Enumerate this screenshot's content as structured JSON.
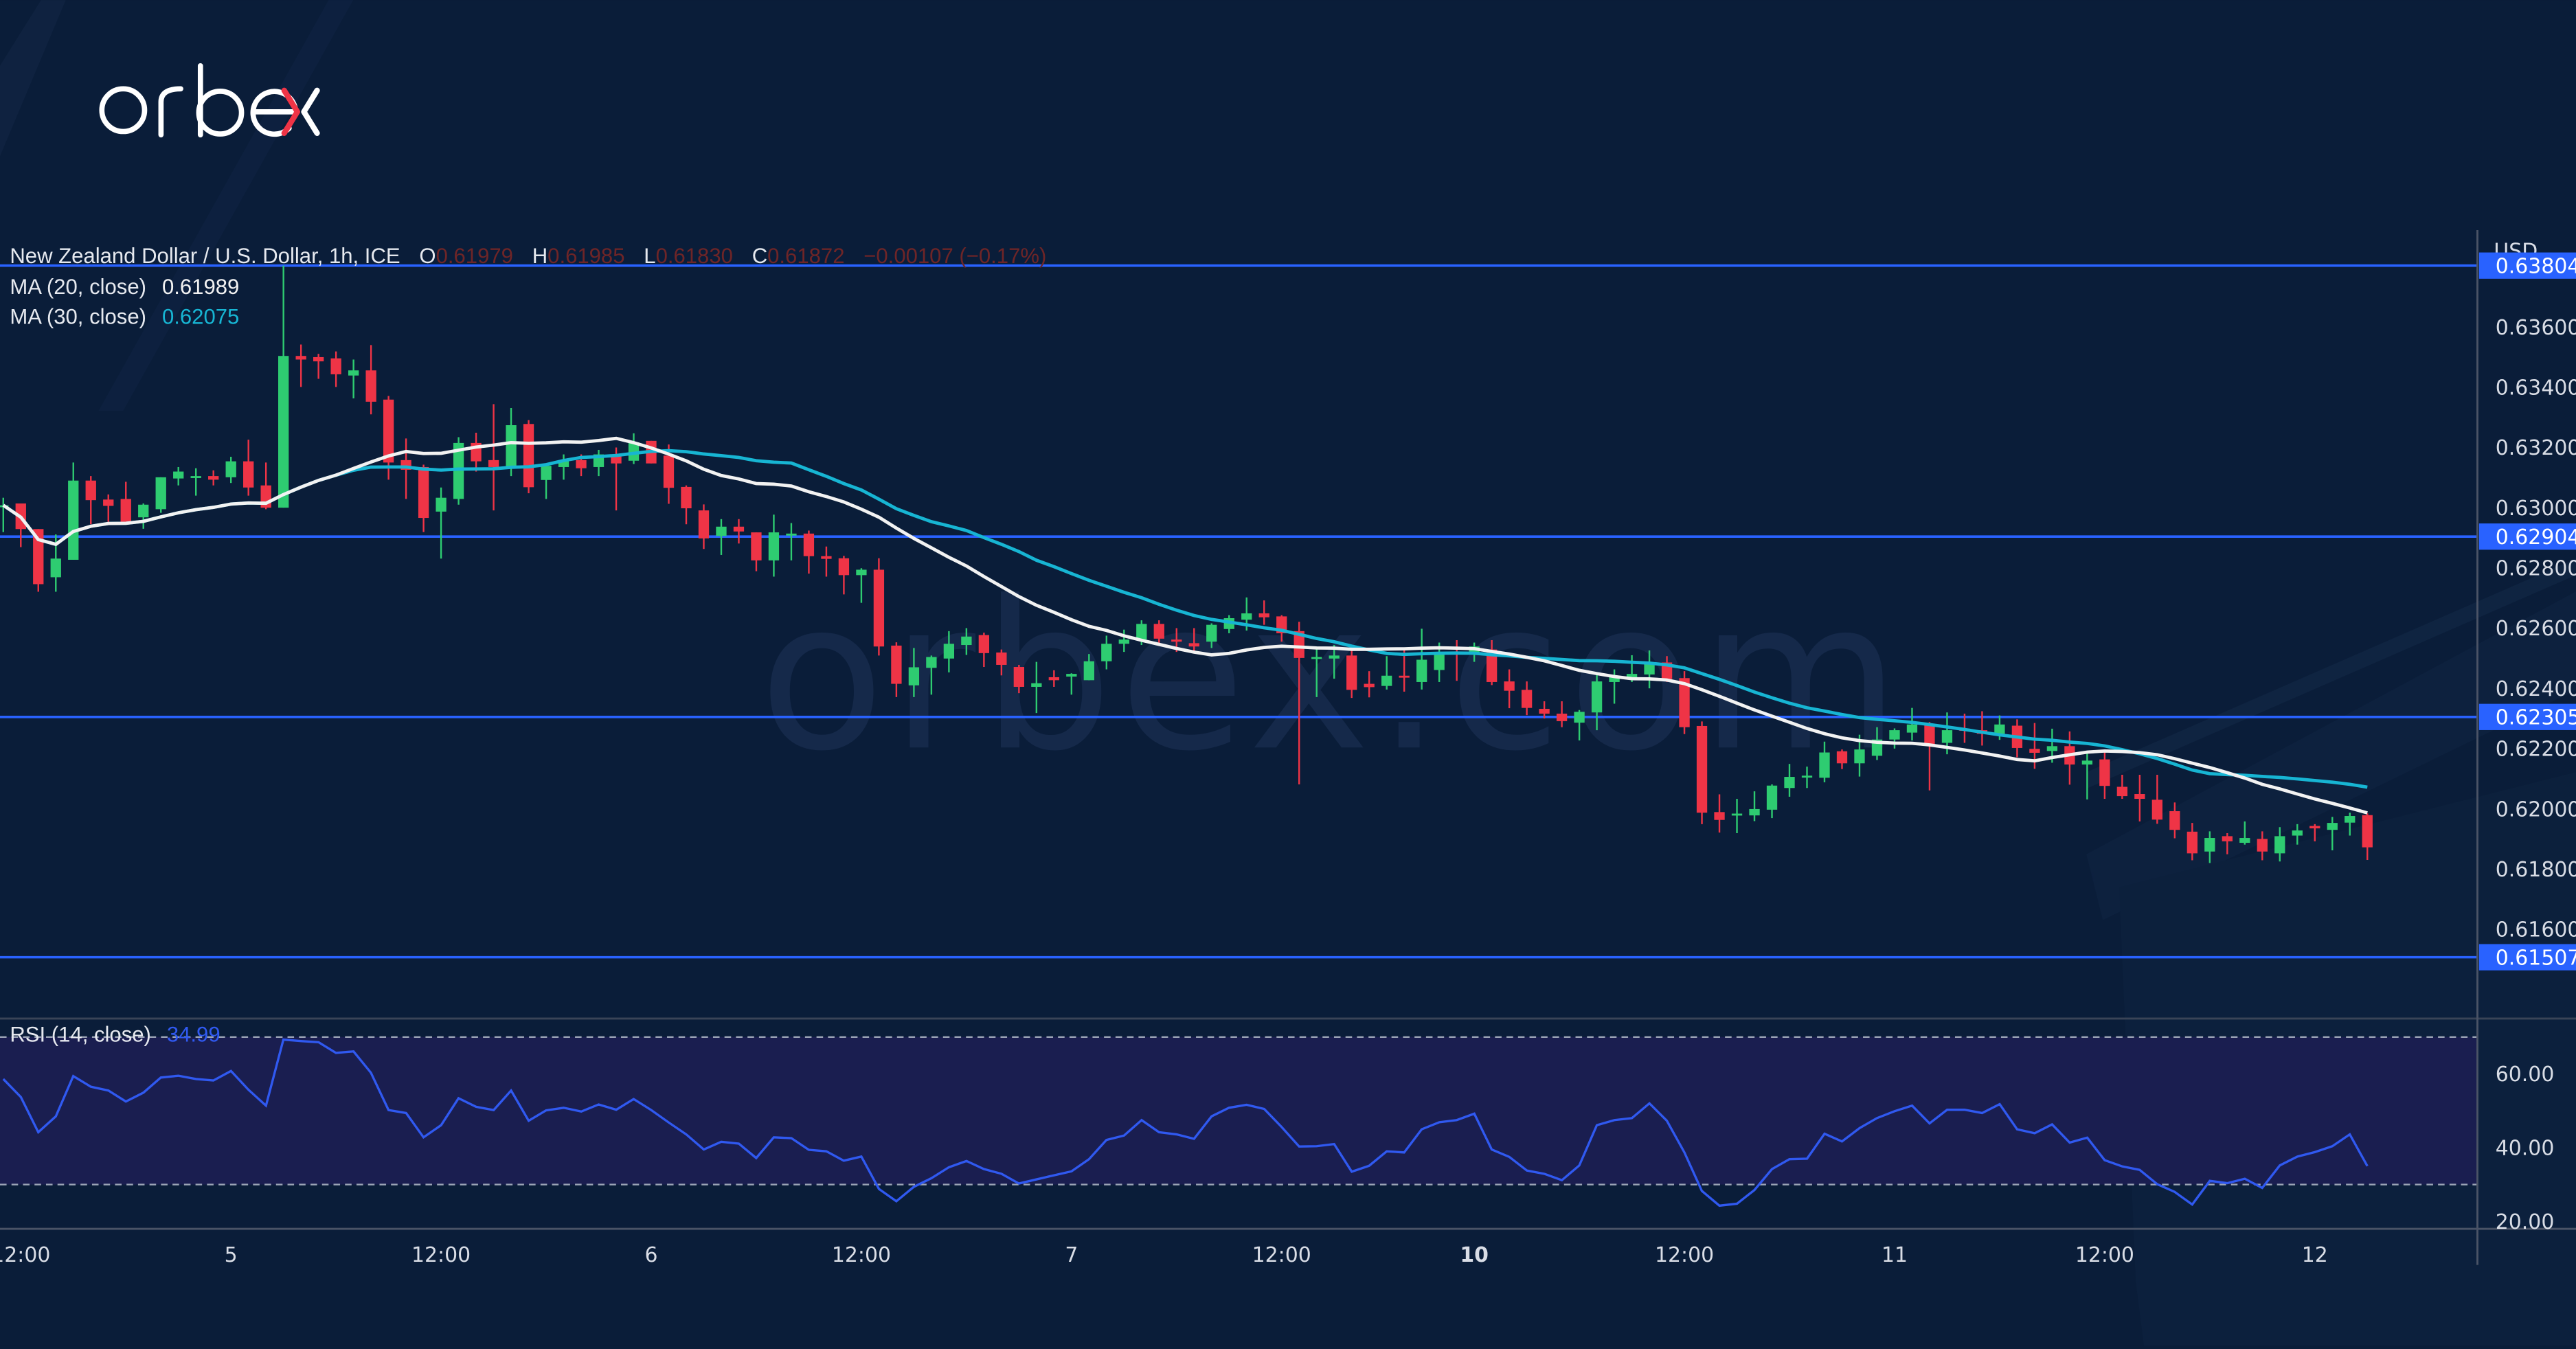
{
  "brand": {
    "logo_text": "orbex",
    "watermark": "orbex.com"
  },
  "legend": {
    "symbol": "New Zealand Dollar / U.S. Dollar, 1h, ICE",
    "o_label": "O",
    "o_value": "0.61979",
    "h_label": "H",
    "h_value": "0.61985",
    "l_label": "L",
    "l_value": "0.61830",
    "c_label": "C",
    "c_value": "0.61872",
    "change": "−0.00107 (−0.17%)",
    "ma20_label": "MA (20, close)",
    "ma20_value": "0.61989",
    "ma30_label": "MA (30, close)",
    "ma30_value": "0.62075",
    "rsi_label": "RSI (14, close)",
    "rsi_value": "34.99"
  },
  "colors": {
    "background": "#0a1d39",
    "up": "#2ecc71",
    "down": "#ef3446",
    "ma20": "#f2f2f2",
    "ma30": "#17b5d3",
    "level": "#2962ff",
    "rsi": "#3059f0",
    "rsi_band": "#1a1e50",
    "legend_ohlc": "#6e2527"
  },
  "chart_data": [
    {
      "type": "candlestick",
      "title": "New Zealand Dollar / U.S. Dollar, 1h, ICE",
      "currency_label": "USD",
      "ylim": [
        0.6142,
        0.6391
      ],
      "y_ticks": [
        "0.63600",
        "0.63400",
        "0.63200",
        "0.63000",
        "0.62800",
        "0.62600",
        "0.62400",
        "0.62200",
        "0.62000",
        "0.61800",
        "0.61600"
      ],
      "x_ticks": [
        {
          "label": "12:00",
          "index": 1
        },
        {
          "label": "5",
          "index": 13
        },
        {
          "label": "12:00",
          "index": 25
        },
        {
          "label": "6",
          "index": 37
        },
        {
          "label": "12:00",
          "index": 49
        },
        {
          "label": "7",
          "index": 61
        },
        {
          "label": "12:00",
          "index": 73
        },
        {
          "label": "10",
          "index": 84,
          "bold": true
        },
        {
          "label": "12:00",
          "index": 96
        },
        {
          "label": "11",
          "index": 108
        },
        {
          "label": "12:00",
          "index": 120
        },
        {
          "label": "12",
          "index": 132
        }
      ],
      "levels": [
        "0.63804",
        "0.62904",
        "0.62305",
        "0.61507"
      ],
      "ma_periods": [
        20,
        30
      ],
      "ohlc": [
        [
          0.63004,
          0.63033,
          0.62919,
          0.63008
        ],
        [
          0.63014,
          0.63014,
          0.62869,
          0.62929
        ],
        [
          0.62929,
          0.62929,
          0.62721,
          0.62746
        ],
        [
          0.62769,
          0.62911,
          0.62721,
          0.62831
        ],
        [
          0.62827,
          0.6315,
          0.62827,
          0.6309
        ],
        [
          0.6309,
          0.63105,
          0.62945,
          0.63025
        ],
        [
          0.63027,
          0.63044,
          0.62953,
          0.63006
        ],
        [
          0.63029,
          0.63086,
          0.62945,
          0.62949
        ],
        [
          0.62968,
          0.63014,
          0.6293,
          0.6301
        ],
        [
          0.62995,
          0.63101,
          0.62983,
          0.63101
        ],
        [
          0.63097,
          0.63135,
          0.63074,
          0.6312
        ],
        [
          0.63101,
          0.63131,
          0.6304,
          0.63105
        ],
        [
          0.63105,
          0.63124,
          0.63074,
          0.63093
        ],
        [
          0.63101,
          0.63169,
          0.63082,
          0.63154
        ],
        [
          0.63154,
          0.63226,
          0.6304,
          0.63067
        ],
        [
          0.63074,
          0.6315,
          0.62995,
          0.63
        ],
        [
          0.63,
          0.63804,
          0.63,
          0.63504
        ],
        [
          0.63504,
          0.63542,
          0.63401,
          0.63492
        ],
        [
          0.635,
          0.63511,
          0.63428,
          0.63486
        ],
        [
          0.63496,
          0.63519,
          0.63401,
          0.63443
        ],
        [
          0.63439,
          0.63492,
          0.63363,
          0.63456
        ],
        [
          0.63456,
          0.6354,
          0.6331,
          0.63352
        ],
        [
          0.63359,
          0.63371,
          0.63093,
          0.6315
        ],
        [
          0.63158,
          0.6323,
          0.63029,
          0.63126
        ],
        [
          0.63135,
          0.63143,
          0.62919,
          0.62966
        ],
        [
          0.62987,
          0.63067,
          0.62831,
          0.63033
        ],
        [
          0.63029,
          0.63234,
          0.6301,
          0.63215
        ],
        [
          0.63215,
          0.63249,
          0.6312,
          0.63154
        ],
        [
          0.63158,
          0.63344,
          0.62991,
          0.63135
        ],
        [
          0.63135,
          0.63331,
          0.63105,
          0.63274
        ],
        [
          0.63278,
          0.63291,
          0.63048,
          0.63068
        ],
        [
          0.63092,
          0.63139,
          0.63029,
          0.63139
        ],
        [
          0.63135,
          0.63177,
          0.63093,
          0.63158
        ],
        [
          0.63158,
          0.63177,
          0.63105,
          0.63131
        ],
        [
          0.63135,
          0.63192,
          0.63105,
          0.63177
        ],
        [
          0.63177,
          0.632,
          0.62991,
          0.63147
        ],
        [
          0.63156,
          0.63247,
          0.63145,
          0.63217
        ],
        [
          0.63222,
          0.63222,
          0.63147,
          0.63147
        ],
        [
          0.63173,
          0.6321,
          0.63013,
          0.63066
        ],
        [
          0.63069,
          0.63074,
          0.62945,
          0.62998
        ],
        [
          0.62991,
          0.63011,
          0.62863,
          0.62898
        ],
        [
          0.62906,
          0.62962,
          0.62843,
          0.62937
        ],
        [
          0.62937,
          0.62962,
          0.62881,
          0.62921
        ],
        [
          0.62918,
          0.62918,
          0.62789,
          0.62825
        ],
        [
          0.62825,
          0.62977,
          0.62771,
          0.62918
        ],
        [
          0.62911,
          0.62949,
          0.62825,
          0.62914
        ],
        [
          0.62914,
          0.62924,
          0.62781,
          0.62839
        ],
        [
          0.62839,
          0.62871,
          0.62771,
          0.6283
        ],
        [
          0.62832,
          0.6284,
          0.62712,
          0.62776
        ],
        [
          0.62776,
          0.62799,
          0.62684,
          0.62794
        ],
        [
          0.62794,
          0.62832,
          0.62509,
          0.62539
        ],
        [
          0.62542,
          0.62553,
          0.62371,
          0.62415
        ],
        [
          0.6241,
          0.62534,
          0.62371,
          0.6247
        ],
        [
          0.62468,
          0.62509,
          0.62379,
          0.62504
        ],
        [
          0.62499,
          0.6259,
          0.62453,
          0.62548
        ],
        [
          0.62544,
          0.626,
          0.62511,
          0.62572
        ],
        [
          0.62577,
          0.62585,
          0.62471,
          0.62517
        ],
        [
          0.62519,
          0.62529,
          0.62443,
          0.62478
        ],
        [
          0.62471,
          0.62478,
          0.62384,
          0.62405
        ],
        [
          0.62405,
          0.62488,
          0.62318,
          0.62417
        ],
        [
          0.62437,
          0.6246,
          0.62405,
          0.62427
        ],
        [
          0.62439,
          0.6245,
          0.62379,
          0.62448
        ],
        [
          0.62427,
          0.62514,
          0.62427,
          0.6249
        ],
        [
          0.6249,
          0.62575,
          0.62463,
          0.62548
        ],
        [
          0.62548,
          0.62595,
          0.62521,
          0.62562
        ],
        [
          0.62562,
          0.62626,
          0.62544,
          0.62614
        ],
        [
          0.62614,
          0.62626,
          0.62541,
          0.62565
        ],
        [
          0.62562,
          0.626,
          0.62521,
          0.62555
        ],
        [
          0.6255,
          0.626,
          0.62519,
          0.62539
        ],
        [
          0.62555,
          0.62616,
          0.62534,
          0.62611
        ],
        [
          0.62597,
          0.62643,
          0.62583,
          0.62633
        ],
        [
          0.62628,
          0.62702,
          0.62592,
          0.62649
        ],
        [
          0.62649,
          0.62692,
          0.62611,
          0.62636
        ],
        [
          0.62639,
          0.62643,
          0.62555,
          0.62583
        ],
        [
          0.6259,
          0.62621,
          0.62081,
          0.62501
        ],
        [
          0.62501,
          0.62534,
          0.62371,
          0.62504
        ],
        [
          0.62499,
          0.62544,
          0.62432,
          0.62509
        ],
        [
          0.62509,
          0.62529,
          0.62368,
          0.62395
        ],
        [
          0.62415,
          0.62457,
          0.6237,
          0.62404
        ],
        [
          0.62408,
          0.62507,
          0.62396,
          0.62442
        ],
        [
          0.62442,
          0.62529,
          0.62389,
          0.62436
        ],
        [
          0.62421,
          0.62598,
          0.62396,
          0.62495
        ],
        [
          0.62461,
          0.62552,
          0.62421,
          0.62514
        ],
        [
          0.62522,
          0.6256,
          0.62425,
          0.62518
        ],
        [
          0.62514,
          0.62552,
          0.62488,
          0.62539
        ],
        [
          0.62529,
          0.6256,
          0.62411,
          0.62421
        ],
        [
          0.62423,
          0.62463,
          0.62334,
          0.62392
        ],
        [
          0.62395,
          0.62423,
          0.62311,
          0.62335
        ],
        [
          0.62332,
          0.62357,
          0.623,
          0.62316
        ],
        [
          0.62316,
          0.62357,
          0.62271,
          0.62291
        ],
        [
          0.62286,
          0.62328,
          0.62227,
          0.62322
        ],
        [
          0.6232,
          0.62446,
          0.62261,
          0.62423
        ],
        [
          0.62421,
          0.62463,
          0.62349,
          0.62438
        ],
        [
          0.62436,
          0.6251,
          0.62421,
          0.62448
        ],
        [
          0.62446,
          0.62526,
          0.624,
          0.62486
        ],
        [
          0.62486,
          0.62507,
          0.62421,
          0.62431
        ],
        [
          0.62434,
          0.62457,
          0.62248,
          0.62271
        ],
        [
          0.62275,
          0.6229,
          0.61949,
          0.61987
        ],
        [
          0.61989,
          0.62048,
          0.61921,
          0.61963
        ],
        [
          0.61978,
          0.62033,
          0.61919,
          0.61984
        ],
        [
          0.61978,
          0.62058,
          0.61959,
          0.61999
        ],
        [
          0.61997,
          0.62081,
          0.61969,
          0.62077
        ],
        [
          0.62069,
          0.62149,
          0.6204,
          0.62106
        ],
        [
          0.62107,
          0.6214,
          0.62069,
          0.6211
        ],
        [
          0.62103,
          0.62223,
          0.62088,
          0.62187
        ],
        [
          0.62191,
          0.62197,
          0.62132,
          0.62151
        ],
        [
          0.62151,
          0.62246,
          0.62107,
          0.62197
        ],
        [
          0.62176,
          0.62271,
          0.62162,
          0.6223
        ],
        [
          0.6223,
          0.62267,
          0.622,
          0.62261
        ],
        [
          0.62253,
          0.62335,
          0.62227,
          0.6228
        ],
        [
          0.6228,
          0.62288,
          0.62061,
          0.62215
        ],
        [
          0.62219,
          0.6232,
          0.62181,
          0.62261
        ],
        [
          0.62266,
          0.62316,
          0.62219,
          0.62259
        ],
        [
          0.62261,
          0.62324,
          0.6221,
          0.62249
        ],
        [
          0.62249,
          0.6231,
          0.62229,
          0.6228
        ],
        [
          0.62276,
          0.62297,
          0.62171,
          0.62202
        ],
        [
          0.62199,
          0.62285,
          0.62133,
          0.62186
        ],
        [
          0.62192,
          0.62266,
          0.62153,
          0.62208
        ],
        [
          0.62208,
          0.62257,
          0.6208,
          0.62147
        ],
        [
          0.62147,
          0.6219,
          0.62031,
          0.6216
        ],
        [
          0.62164,
          0.62189,
          0.62033,
          0.62076
        ],
        [
          0.62073,
          0.62113,
          0.62033,
          0.62042
        ],
        [
          0.62049,
          0.62113,
          0.61958,
          0.62033
        ],
        [
          0.6203,
          0.62113,
          0.6195,
          0.61964
        ],
        [
          0.61992,
          0.62021,
          0.61902,
          0.6193
        ],
        [
          0.61924,
          0.61953,
          0.61829,
          0.61852
        ],
        [
          0.61858,
          0.61925,
          0.6182,
          0.61903
        ],
        [
          0.61909,
          0.61919,
          0.61849,
          0.61892
        ],
        [
          0.61887,
          0.61958,
          0.61881,
          0.61903
        ],
        [
          0.619,
          0.61925,
          0.61829,
          0.61858
        ],
        [
          0.61852,
          0.61939,
          0.61825,
          0.61909
        ],
        [
          0.61911,
          0.61949,
          0.61881,
          0.61928
        ],
        [
          0.61943,
          0.61949,
          0.61892,
          0.61935
        ],
        [
          0.6193,
          0.61973,
          0.61862,
          0.61953
        ],
        [
          0.61954,
          0.61987,
          0.61911,
          0.61976
        ],
        [
          0.61979,
          0.61985,
          0.6183,
          0.61872
        ]
      ]
    },
    {
      "type": "line",
      "title": "RSI (14, close)",
      "ylim": [
        18,
        75
      ],
      "y_ticks": [
        "60.00",
        "40.00",
        "20.00"
      ],
      "band": [
        30,
        70
      ],
      "values": [
        58.6,
        53.7,
        44.2,
        48.5,
        59.4,
        56.5,
        55.5,
        52.5,
        54.9,
        59.0,
        59.5,
        58.6,
        58.2,
        60.8,
        55.7,
        51.4,
        69.3,
        68.9,
        68.6,
        65.7,
        66.1,
        60.3,
        50.2,
        49.4,
        42.8,
        46.1,
        53.4,
        51.1,
        50.2,
        55.5,
        47.3,
        50.1,
        50.8,
        49.8,
        51.7,
        50.3,
        53.2,
        50.2,
        46.8,
        43.6,
        39.5,
        41.6,
        41.1,
        37.2,
        42.8,
        42.6,
        39.4,
        39.0,
        36.5,
        37.6,
        28.8,
        25.5,
        29.4,
        31.7,
        34.7,
        36.4,
        34.2,
        32.9,
        30.3,
        31.4,
        32.5,
        33.6,
        36.9,
        42.1,
        43.3,
        47.5,
        44.2,
        43.6,
        42.4,
        48.5,
        50.8,
        51.6,
        50.5,
        45.6,
        40.3,
        40.4,
        41.0,
        33.5,
        35.1,
        39.0,
        38.7,
        45.0,
        46.9,
        47.5,
        49.2,
        39.5,
        37.5,
        33.8,
        32.9,
        31.2,
        35.2,
        46.1,
        47.5,
        48.0,
        52.0,
        47.3,
        38.7,
        28.3,
        24.3,
        24.8,
        28.5,
        34.2,
        36.9,
        37.0,
        43.8,
        41.7,
        45.3,
        48.0,
        49.9,
        51.4,
        46.6,
        50.3,
        50.3,
        49.4,
        51.8,
        45.0,
        43.9,
        46.3,
        41.4,
        42.7,
        36.6,
        34.9,
        34.0,
        30.1,
        28.0,
        24.6,
        31.0,
        30.4,
        31.6,
        29.1,
        35.2,
        37.6,
        38.8,
        40.4,
        43.6,
        34.99
      ]
    }
  ]
}
